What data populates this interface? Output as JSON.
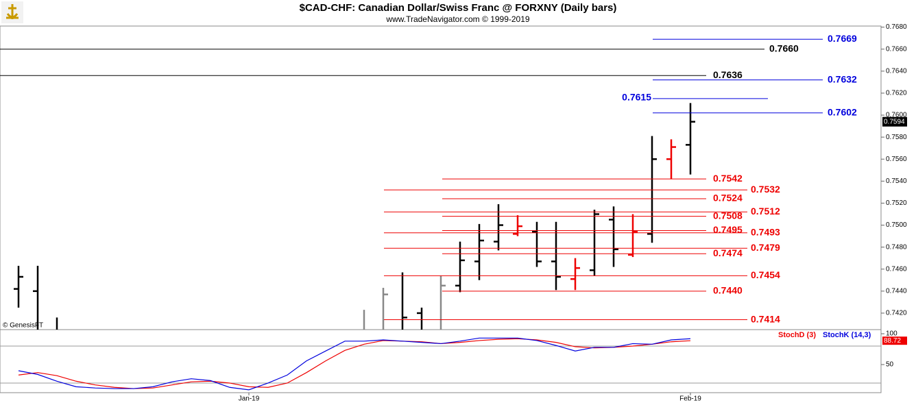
{
  "chart_data": [
    {
      "type": "ohlc",
      "title": "$CAD-CHF:  Canadian Dollar/Swiss Franc @ FORXNY  (Daily bars)",
      "subtitle": "www.TradeNavigator.com © 1999-2019",
      "source": "© GenesisFT",
      "open": [
        0.7442,
        0.744,
        null,
        null,
        null,
        null,
        null,
        null,
        null,
        null,
        null,
        null,
        null,
        null,
        null,
        null,
        null,
        null,
        null,
        null,
        null,
        0.742,
        null,
        0.7445,
        0.7467,
        0.7485,
        0.7492,
        0.7494,
        0.7467,
        0.7451,
        0.7459,
        0.7505,
        0.7473,
        0.7492,
        0.756,
        0.7573
      ],
      "high": [
        0.7463,
        0.7463,
        0.7416,
        null,
        null,
        null,
        null,
        null,
        null,
        null,
        null,
        null,
        null,
        null,
        null,
        null,
        null,
        null,
        0.7423,
        0.7443,
        0.7457,
        0.7425,
        0.7454,
        0.7485,
        0.7501,
        0.7519,
        0.7509,
        0.7503,
        0.7503,
        0.747,
        0.7514,
        0.7517,
        0.751,
        0.7581,
        0.7578,
        0.7611
      ],
      "low": [
        0.7425,
        null,
        null,
        null,
        null,
        null,
        null,
        null,
        null,
        null,
        null,
        null,
        null,
        null,
        null,
        null,
        null,
        null,
        null,
        null,
        null,
        null,
        null,
        0.7439,
        0.745,
        0.7477,
        0.749,
        0.7462,
        0.7441,
        0.7441,
        0.7454,
        0.7462,
        0.7471,
        0.7484,
        0.7542,
        0.7546
      ],
      "close": [
        0.7453,
        null,
        null,
        null,
        null,
        null,
        null,
        null,
        null,
        null,
        null,
        null,
        null,
        null,
        null,
        null,
        null,
        null,
        null,
        0.7437,
        0.7416,
        null,
        0.7445,
        0.7468,
        0.7486,
        0.75,
        0.7499,
        0.7467,
        0.7453,
        0.7461,
        0.751,
        0.7478,
        0.7494,
        0.756,
        0.7571,
        0.7594
      ],
      "colors": [
        "#000000",
        "#000000",
        "#000000",
        "#000000",
        "#000000",
        "#000000",
        "#000000",
        "#000000",
        "#000000",
        "#000000",
        "#000000",
        "#000000",
        "#000000",
        "#000000",
        "#000000",
        "#000000",
        "#000000",
        "#000000",
        "#888888",
        "#888888",
        "#000000",
        "#000000",
        "#888888",
        "#000000",
        "#000000",
        "#000000",
        "#ee0000",
        "#000000",
        "#000000",
        "#ee0000",
        "#000000",
        "#000000",
        "#ee0000",
        "#000000",
        "#ee0000",
        "#000000"
      ],
      "last_price": 0.7594,
      "ylim": [
        0.7405,
        0.7681
      ],
      "yticks": [
        {
          "value": 0.742,
          "label": "0.7420"
        },
        {
          "value": 0.744,
          "label": "0.7440"
        },
        {
          "value": 0.746,
          "label": "0.7460"
        },
        {
          "value": 0.748,
          "label": "0.7480"
        },
        {
          "value": 0.75,
          "label": "0.7500"
        },
        {
          "value": 0.752,
          "label": "0.7520"
        },
        {
          "value": 0.754,
          "label": "0.7540"
        },
        {
          "value": 0.756,
          "label": "0.7560"
        },
        {
          "value": 0.758,
          "label": "0.7580"
        },
        {
          "value": 0.76,
          "label": "0.7600"
        },
        {
          "value": 0.762,
          "label": "0.7620"
        },
        {
          "value": 0.764,
          "label": "0.7640"
        },
        {
          "value": 0.766,
          "label": "0.7660"
        },
        {
          "value": 0.768,
          "label": "0.7680"
        }
      ],
      "levels": [
        {
          "color": "#000000",
          "values": [
            0.766
          ],
          "value_labels": [
            "0.7660"
          ]
        },
        {
          "color": "#000000",
          "values": [
            0.7636
          ],
          "value_labels": [
            "0.7636"
          ]
        },
        {
          "color": "#0000dd",
          "values": [
            0.7669,
            0.7632,
            0.7602
          ],
          "value_labels": [
            "0.7669",
            "0.7632",
            "0.7602"
          ]
        },
        {
          "color": "#0000dd",
          "values": [
            0.7615
          ],
          "value_labels": [
            "0.7615"
          ]
        },
        {
          "color": "#ee0000",
          "values": [
            0.7542,
            0.7524,
            0.7508,
            0.7495,
            0.7474,
            0.744
          ],
          "value_labels": [
            "0.7542",
            "0.7524",
            "0.7508",
            "0.7495",
            "0.7474",
            "0.7440"
          ]
        },
        {
          "color": "#ee0000",
          "values": [
            0.7532,
            0.7512,
            0.7493,
            0.7479,
            0.7454,
            0.7414
          ],
          "value_labels": [
            "0.7532",
            "0.7512",
            "0.7493",
            "0.7479",
            "0.7454",
            "0.7414"
          ]
        }
      ]
    },
    {
      "type": "line",
      "categories": [
        null,
        null,
        null,
        null,
        null,
        null,
        null,
        null,
        null,
        null,
        null,
        null,
        "Jan-19",
        null,
        null,
        null,
        null,
        null,
        null,
        null,
        null,
        null,
        null,
        null,
        null,
        null,
        null,
        null,
        null,
        null,
        null,
        null,
        null,
        null,
        null,
        "Feb-19"
      ],
      "series": [
        {
          "name": "StochD (3)",
          "color": "#ee0000",
          "values": [
            33,
            37,
            32,
            23,
            17,
            13,
            11,
            12,
            17,
            22,
            23,
            20,
            14,
            13,
            20,
            37,
            56,
            73,
            83,
            89,
            88,
            87,
            84,
            86,
            89,
            91,
            92,
            90,
            86,
            79,
            77,
            78,
            80,
            83,
            87,
            88.72
          ],
          "last_label": "88.72"
        },
        {
          "name": "StochK (14,3)",
          "color": "#0000dd",
          "values": [
            40,
            34,
            23,
            14,
            12,
            11,
            11,
            14,
            22,
            27,
            24,
            13,
            9,
            20,
            33,
            56,
            72,
            88,
            88,
            90,
            88,
            86,
            84,
            88,
            93,
            93,
            93,
            89,
            81,
            72,
            78,
            78,
            84,
            83,
            90,
            92
          ]
        }
      ],
      "ylim": [
        4.4,
        106.7
      ],
      "yticks": [
        50,
        100
      ],
      "hlines": [
        80,
        20
      ]
    }
  ]
}
